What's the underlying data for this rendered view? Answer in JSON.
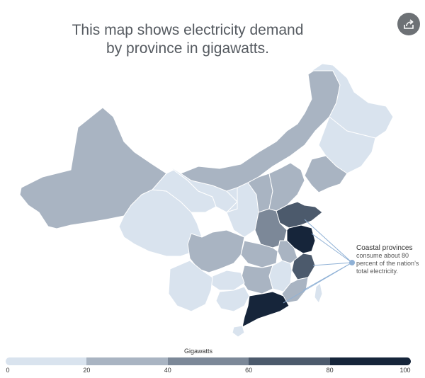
{
  "title": {
    "line1": "This map shows electricity demand",
    "line2": "by province in gigawatts."
  },
  "share_button": {
    "icon": "share-icon"
  },
  "annotation": {
    "lead": "Coastal provinces",
    "body": " consume about 80 percent of the nation’s total electricity."
  },
  "legend": {
    "title": "Gigawatts",
    "ticks": [
      "0",
      "20",
      "40",
      "60",
      "80",
      "100"
    ],
    "colors": [
      "#d9e3ee",
      "#a9b4c2",
      "#7c8898",
      "#4c5a6c",
      "#16253a"
    ]
  }
}
